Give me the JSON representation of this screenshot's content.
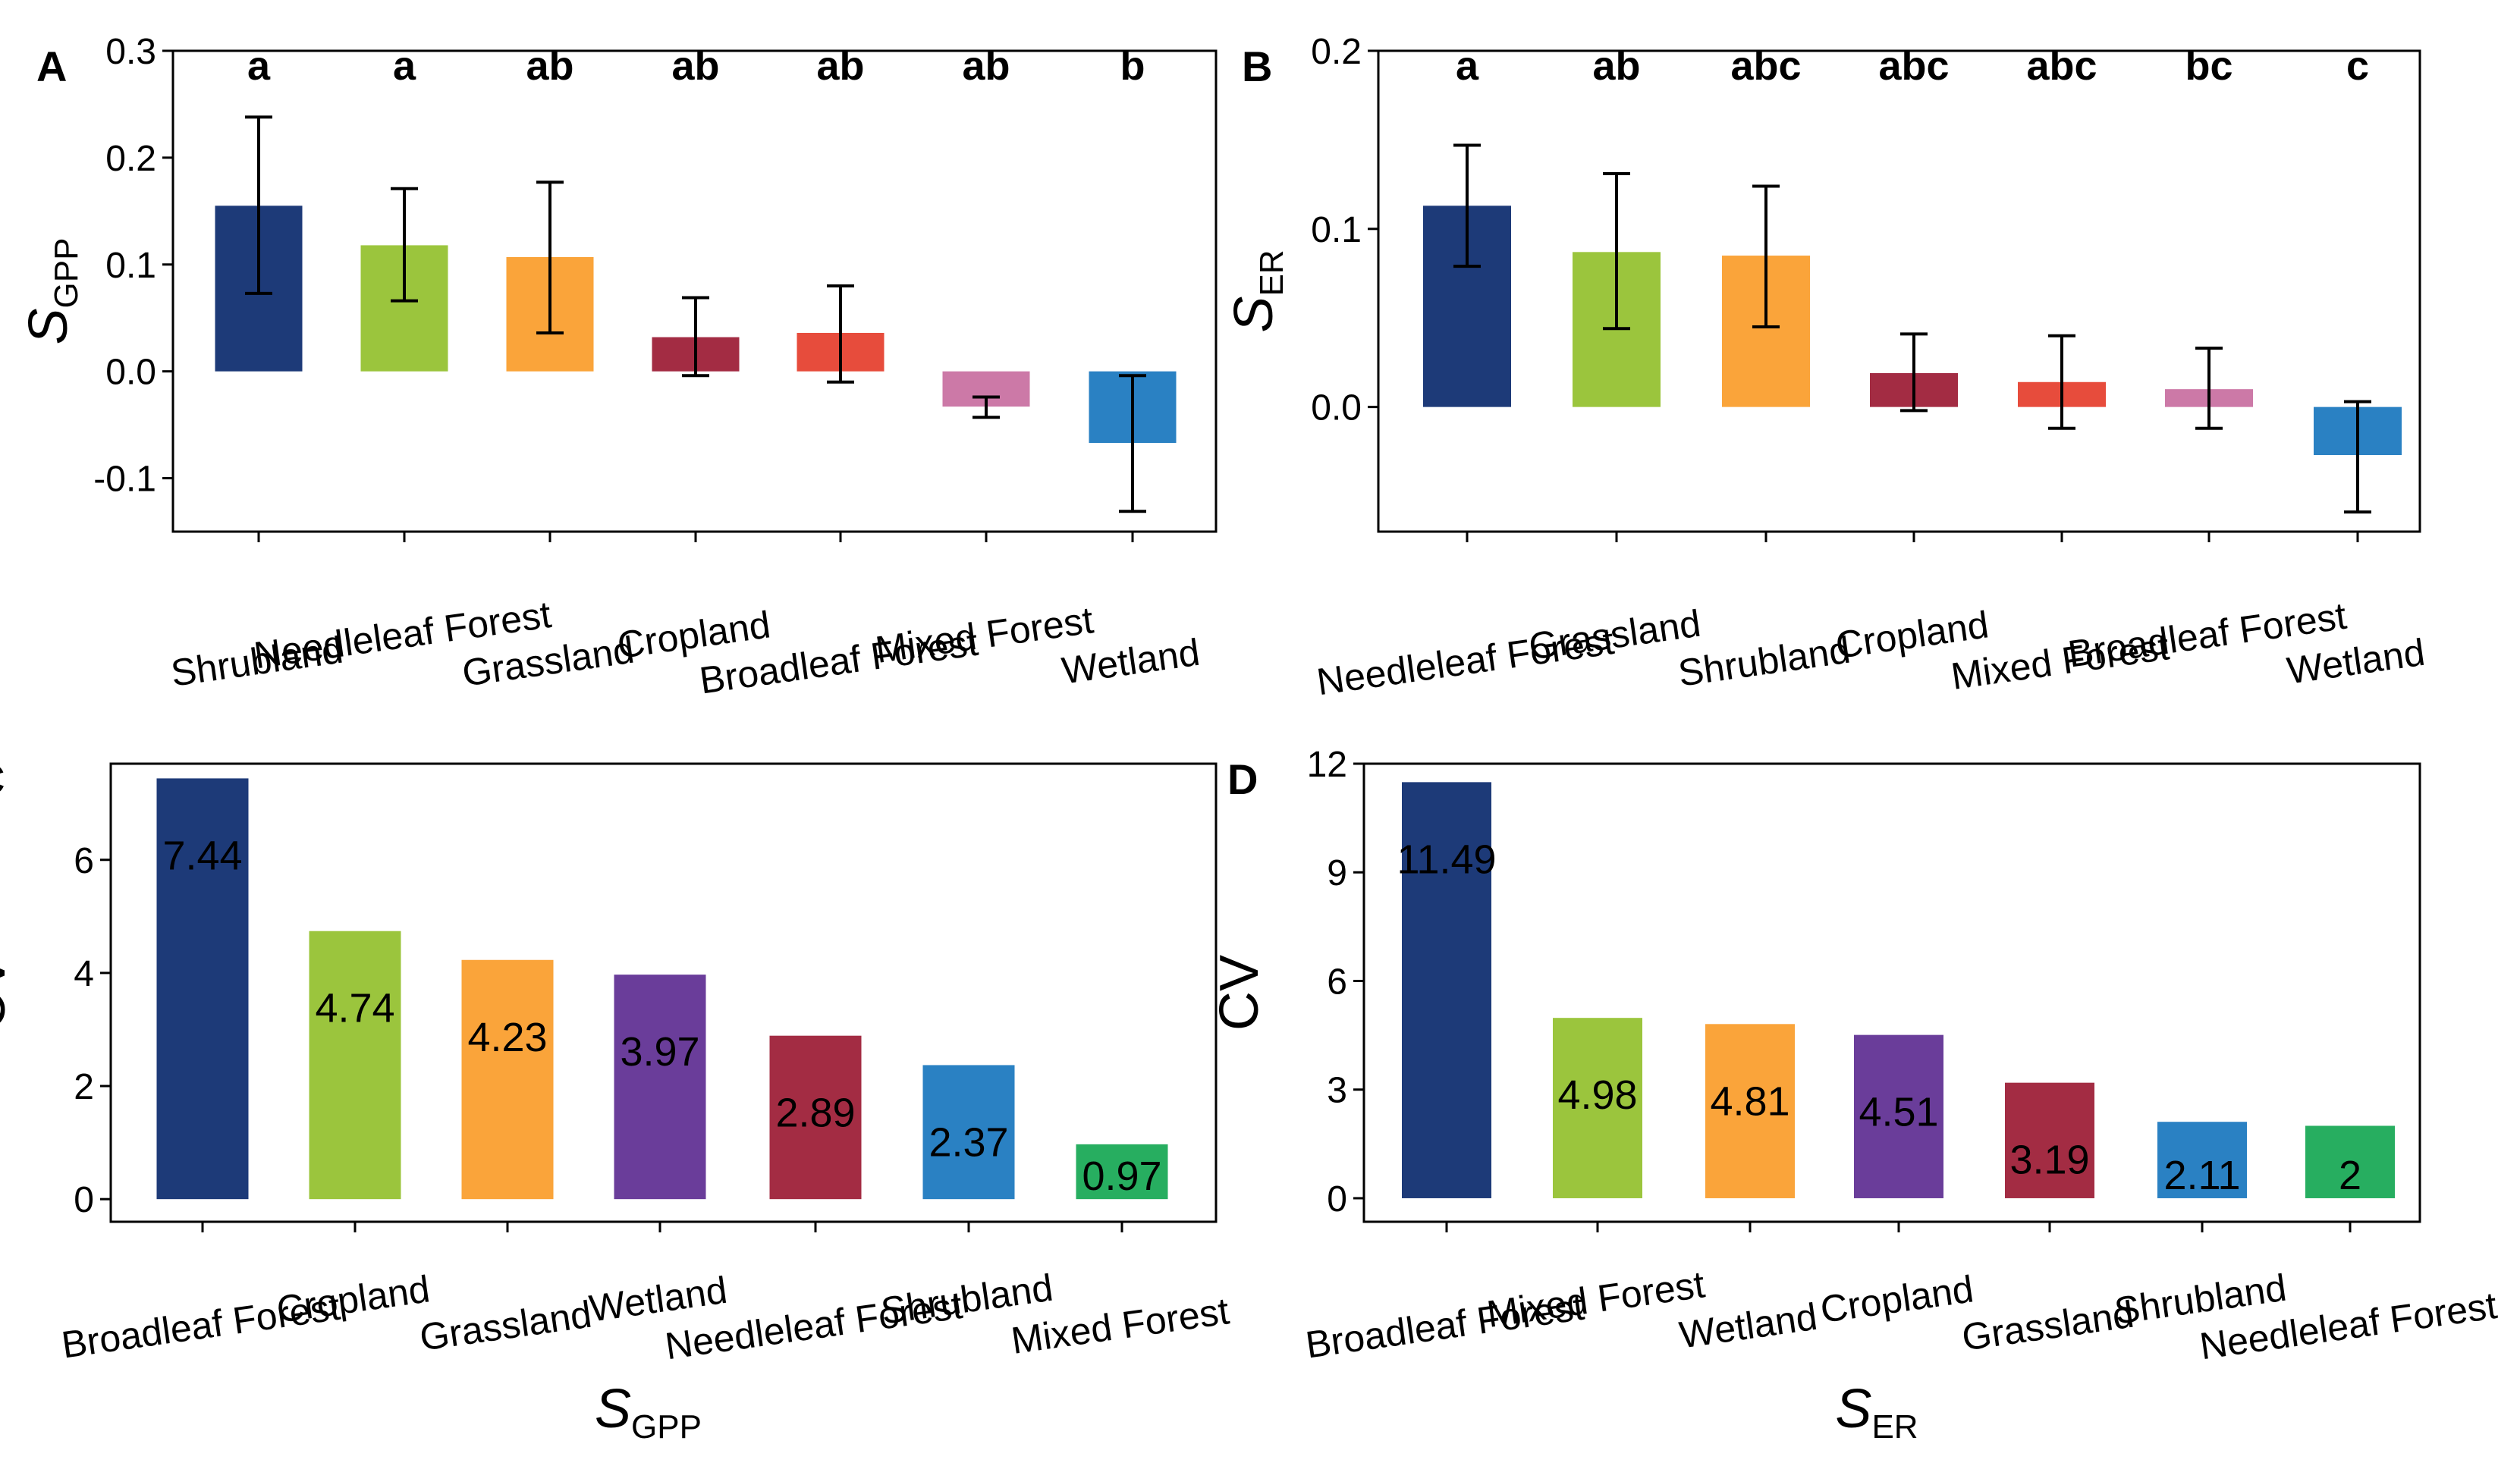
{
  "chart_data": [
    {
      "panel": "A",
      "type": "bar",
      "ylabel": "S",
      "ylabel_sub": "GPP",
      "ylim": [
        -0.15,
        0.3
      ],
      "yticks": [
        -0.1,
        0.0,
        0.1,
        0.2,
        0.3
      ],
      "ytick_labels": [
        "-0.1",
        "0.0",
        "0.1",
        "0.2",
        "0.3"
      ],
      "categories": [
        "Shrubland",
        "Needleleaf Forest",
        "Grassland",
        "Cropland",
        "Broadleaf Forest",
        "Mixed Forest",
        "Wetland"
      ],
      "values": [
        0.155,
        0.118,
        0.107,
        0.032,
        0.036,
        -0.033,
        -0.067
      ],
      "err_low": [
        0.073,
        0.066,
        0.036,
        -0.004,
        -0.01,
        -0.043,
        -0.131
      ],
      "err_high": [
        0.238,
        0.171,
        0.177,
        0.069,
        0.08,
        -0.024,
        -0.004
      ],
      "letters": [
        "a",
        "a",
        "ab",
        "ab",
        "ab",
        "ab",
        "b"
      ],
      "colors": [
        "#1d3a78",
        "#9bc53d",
        "#faa43a",
        "#a32c43",
        "#e74c3c",
        "#cc79a7",
        "#2a81c3"
      ]
    },
    {
      "panel": "B",
      "type": "bar",
      "ylabel": "S",
      "ylabel_sub": "ER",
      "ylim": [
        -0.07,
        0.2
      ],
      "yticks": [
        0.0,
        0.1,
        0.2
      ],
      "ytick_labels": [
        "0.0",
        "0.1",
        "0.2"
      ],
      "categories": [
        "Needleleaf Forest",
        "Grassland",
        "Shrubland",
        "Cropland",
        "Mixed Forest",
        "Broadleaf Forest",
        "Wetland"
      ],
      "values": [
        0.113,
        0.087,
        0.085,
        0.019,
        0.014,
        0.01,
        -0.027
      ],
      "err_low": [
        0.079,
        0.044,
        0.045,
        -0.002,
        -0.012,
        -0.012,
        -0.059
      ],
      "err_high": [
        0.147,
        0.131,
        0.124,
        0.041,
        0.04,
        0.033,
        0.003
      ],
      "letters": [
        "a",
        "ab",
        "abc",
        "abc",
        "abc",
        "bc",
        "c"
      ],
      "colors": [
        "#1d3a78",
        "#9bc53d",
        "#faa43a",
        "#a32c43",
        "#e74c3c",
        "#cc79a7",
        "#2a81c3"
      ]
    },
    {
      "panel": "C",
      "type": "bar",
      "ylabel": "CV",
      "xlabel": "S",
      "xlabel_sub": "GPP",
      "ylim": [
        -0.4,
        7.7
      ],
      "yticks": [
        0,
        2,
        4,
        6
      ],
      "ytick_labels": [
        "0",
        "2",
        "4",
        "6"
      ],
      "categories": [
        "Broadleaf Forest",
        "Cropland",
        "Grassland",
        "Wetland",
        "Needleleaf Forest",
        "Shrubland",
        "Mixed Forest"
      ],
      "values": [
        7.44,
        4.74,
        4.23,
        3.97,
        2.89,
        2.37,
        0.97
      ],
      "value_labels": [
        "7.44",
        "4.74",
        "4.23",
        "3.97",
        "2.89",
        "2.37",
        "0.97"
      ],
      "colors": [
        "#1d3a78",
        "#9bc53d",
        "#faa43a",
        "#6a3d9a",
        "#a32c43",
        "#2a81c3",
        "#27ae60"
      ]
    },
    {
      "panel": "D",
      "type": "bar",
      "ylabel": "CV",
      "xlabel": "S",
      "xlabel_sub": "ER",
      "ylim": [
        -0.65,
        12.0
      ],
      "yticks": [
        0,
        3,
        6,
        9,
        12
      ],
      "ytick_labels": [
        "0",
        "3",
        "6",
        "9",
        "12"
      ],
      "categories": [
        "Broadleaf Forest",
        "Mixed Forest",
        "Wetland",
        "Cropland",
        "Grassland",
        "Shrubland",
        "Needleleaf Forest"
      ],
      "values": [
        11.49,
        4.98,
        4.81,
        4.51,
        3.19,
        2.11,
        2.0
      ],
      "value_labels": [
        "11.49",
        "4.98",
        "4.81",
        "4.51",
        "3.19",
        "2.11",
        "2"
      ],
      "colors": [
        "#1d3a78",
        "#9bc53d",
        "#faa43a",
        "#6a3d9a",
        "#a32c43",
        "#2a81c3",
        "#27ae60"
      ]
    }
  ]
}
